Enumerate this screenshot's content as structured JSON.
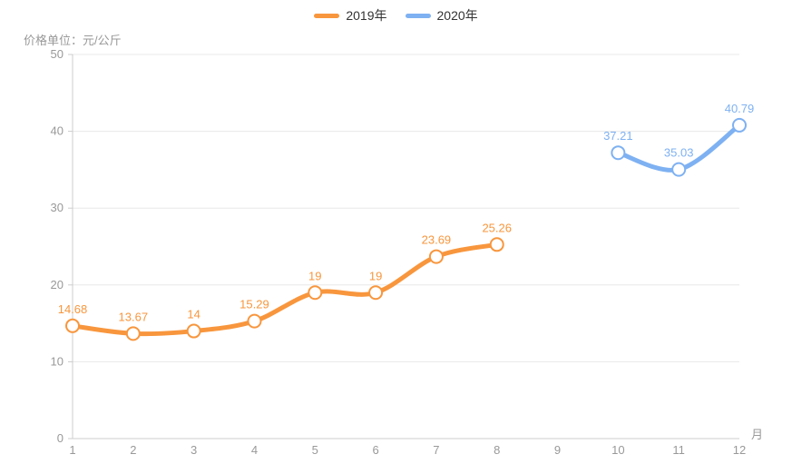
{
  "chart_data": {
    "type": "line",
    "smooth": true,
    "unit_label": "价格单位：元/公斤",
    "x_axis_name": "月",
    "x_ticks": [
      1,
      2,
      3,
      4,
      5,
      6,
      7,
      8,
      9,
      10,
      11,
      12
    ],
    "y_ticks": [
      0,
      10,
      20,
      30,
      40,
      50
    ],
    "xlim": [
      1,
      12
    ],
    "ylim": [
      0,
      50
    ],
    "grid": true,
    "legend_position": "top-center",
    "series": [
      {
        "name": "2019年",
        "color": "#F8963D",
        "x": [
          1,
          2,
          3,
          4,
          5,
          6,
          7,
          8
        ],
        "values": [
          14.68,
          13.67,
          14,
          15.29,
          19,
          19,
          23.69,
          25.26
        ]
      },
      {
        "name": "2020年",
        "color": "#7EB1F2",
        "x": [
          10,
          11,
          12
        ],
        "values": [
          37.21,
          35.03,
          40.79
        ]
      }
    ],
    "colors": {
      "axis_label": "#999999",
      "axis_line": "#CCCCCC",
      "grid_line": "#E8E8E8",
      "legend_text": "#333333",
      "marker_fill": "#FFFFFF"
    }
  }
}
